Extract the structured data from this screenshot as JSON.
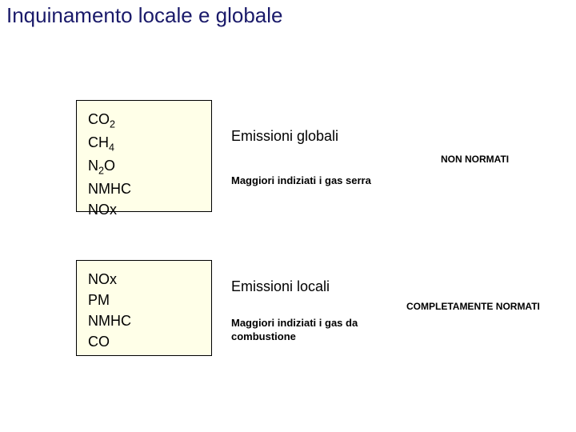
{
  "title": "Inquinamento locale e globale",
  "title_color": "#1a1a6a",
  "title_fontsize": 26,
  "background_color": "#ffffff",
  "box": {
    "background_color": "#ffffe8",
    "border_color": "#000000",
    "text_fontsize": 18,
    "text_color": "#000000"
  },
  "box1": {
    "items": [
      {
        "base": "CO",
        "sub": "2"
      },
      {
        "base": "CH",
        "sub": "4"
      },
      {
        "base": "N",
        "sub": "2",
        "tail": "O"
      },
      {
        "base": "NMHC"
      },
      {
        "base": "NOx"
      }
    ]
  },
  "box2": {
    "items": [
      {
        "base": "NOx"
      },
      {
        "base": "PM"
      },
      {
        "base": "NMHC"
      },
      {
        "base": "CO"
      }
    ]
  },
  "mid1": {
    "title": "Emissioni globali",
    "title_fontsize": 18,
    "subtitle": "Maggiori indiziati i gas serra",
    "subtitle_fontsize": 13
  },
  "mid2": {
    "title": "Emissioni locali",
    "title_fontsize": 18,
    "subtitle": "Maggiori indiziati i gas da combustione",
    "subtitle_fontsize": 13
  },
  "right1": {
    "label": "NON NORMATI",
    "fontsize": 12
  },
  "right2": {
    "label": "COMPLETAMENTE NORMATI",
    "fontsize": 12
  }
}
